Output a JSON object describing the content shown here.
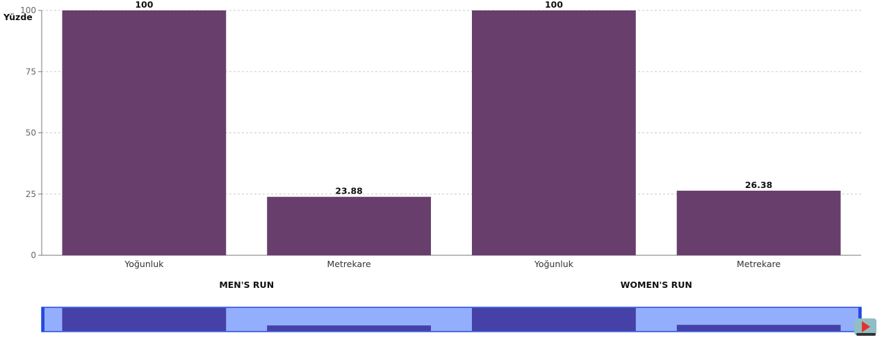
{
  "colors": {
    "bar": "#683f6c",
    "grid": "#c8c8c8",
    "axis": "#777777",
    "navigator_bg": "#93aefc",
    "navigator_bar": "#4641a6",
    "navigator_border": "#2448e0",
    "play_bg": "#8fbfc4",
    "play_icon": "#e8302a"
  },
  "icons": {
    "play": "play-icon",
    "navigator_handle": "range-handle-icon"
  },
  "chart_data": {
    "type": "bar",
    "ylabel": "Yüzde",
    "xlabel": "",
    "ylim": [
      0,
      100
    ],
    "yticks": [
      0,
      25,
      50,
      75,
      100
    ],
    "grid": true,
    "groups": [
      {
        "name": "MEN'S RUN",
        "categories": [
          "Yoğunluk",
          "Metrekare"
        ],
        "values": [
          100,
          23.88
        ]
      },
      {
        "name": "WOMEN'S RUN",
        "categories": [
          "Yoğunluk",
          "Metrekare"
        ],
        "values": [
          100,
          26.38
        ]
      }
    ]
  }
}
